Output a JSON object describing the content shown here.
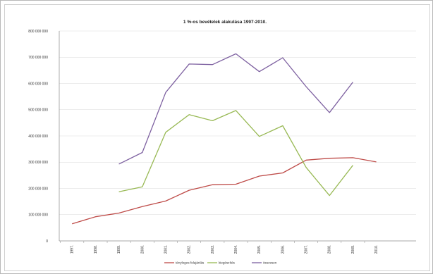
{
  "chart_data": {
    "type": "line",
    "title": "1 %-os bevételek alakulása 1997-2010.",
    "xlabel": "",
    "ylabel": "",
    "categories": [
      "1997.",
      "1998.",
      "1999.",
      "2000.",
      "2001.",
      "2002.",
      "2003.",
      "2004.",
      "2005.",
      "2006.",
      "2007.",
      "2008.",
      "2009.",
      "2010."
    ],
    "ylim": [
      0,
      800000000
    ],
    "yticks": [
      0,
      100000000,
      200000000,
      300000000,
      400000000,
      500000000,
      600000000,
      700000000,
      800000000
    ],
    "ytick_labels": [
      "0",
      "100 000 000",
      "200 000 000",
      "300 000 000",
      "400 000 000",
      "500 000 000",
      "600 000 000",
      "700 000 000",
      "800 000 000"
    ],
    "grid": true,
    "legend_position": "bottom",
    "series": [
      {
        "name": "tényleges felajánlás",
        "color": "#be4b48",
        "values": [
          65000000,
          92000000,
          106000000,
          131000000,
          152000000,
          193000000,
          214000000,
          216000000,
          247000000,
          259000000,
          308000000,
          315000000,
          317000000,
          301000000
        ]
      },
      {
        "name": "kiegészítés",
        "color": "#98b954",
        "values": [
          null,
          null,
          187000000,
          206000000,
          414000000,
          481000000,
          458000000,
          497000000,
          398000000,
          439000000,
          280000000,
          173000000,
          288000000,
          null
        ]
      },
      {
        "name": "összesen",
        "color": "#7d60a0",
        "values": [
          null,
          null,
          293000000,
          337000000,
          566000000,
          674000000,
          672000000,
          713000000,
          645000000,
          698000000,
          588000000,
          489000000,
          605000000,
          null
        ]
      }
    ]
  }
}
